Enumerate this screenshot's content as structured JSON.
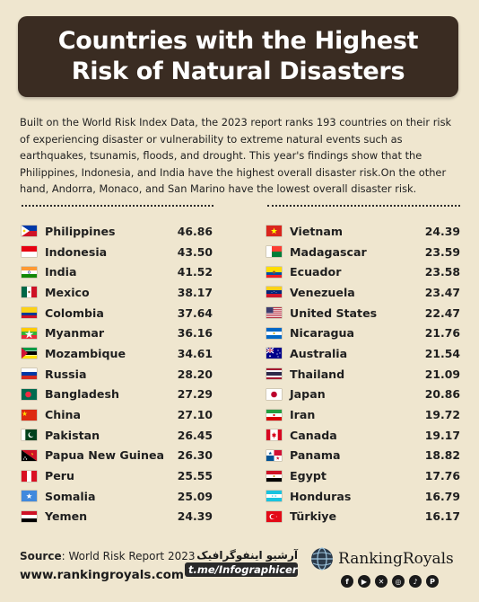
{
  "title_line1": "Countries with the Highest",
  "title_line2": "Risk of Natural Disasters",
  "description": "Built on the World Risk Index Data, the 2023 report ranks 193 countries on their risk of experiencing disaster or vulnerability to extreme natural events such as earthquakes, tsunamis, floods, and drought. This year's findings show that the Philippines, Indonesia, and India have the highest overall disaster risk.On the other hand, Andorra, Monaco, and San Marino have the lowest overall disaster risk.",
  "left_column": [
    {
      "country": "Philippines",
      "score": "46.86",
      "flag": "philippines"
    },
    {
      "country": "Indonesia",
      "score": "43.50",
      "flag": "indonesia"
    },
    {
      "country": "India",
      "score": "41.52",
      "flag": "india"
    },
    {
      "country": "Mexico",
      "score": "38.17",
      "flag": "mexico"
    },
    {
      "country": "Colombia",
      "score": "37.64",
      "flag": "colombia"
    },
    {
      "country": "Myanmar",
      "score": "36.16",
      "flag": "myanmar"
    },
    {
      "country": "Mozambique",
      "score": "34.61",
      "flag": "mozambique"
    },
    {
      "country": "Russia",
      "score": "28.20",
      "flag": "russia"
    },
    {
      "country": "Bangladesh",
      "score": "27.29",
      "flag": "bangladesh"
    },
    {
      "country": "China",
      "score": "27.10",
      "flag": "china"
    },
    {
      "country": "Pakistan",
      "score": "26.45",
      "flag": "pakistan"
    },
    {
      "country": "Papua New Guinea",
      "score": "26.30",
      "flag": "papua-new-guinea"
    },
    {
      "country": "Peru",
      "score": "25.55",
      "flag": "peru"
    },
    {
      "country": "Somalia",
      "score": "25.09",
      "flag": "somalia"
    },
    {
      "country": "Yemen",
      "score": "24.39",
      "flag": "yemen"
    }
  ],
  "right_column": [
    {
      "country": "Vietnam",
      "score": "24.39",
      "flag": "vietnam"
    },
    {
      "country": "Madagascar",
      "score": "23.59",
      "flag": "madagascar"
    },
    {
      "country": "Ecuador",
      "score": "23.58",
      "flag": "ecuador"
    },
    {
      "country": "Venezuela",
      "score": "23.47",
      "flag": "venezuela"
    },
    {
      "country": "United States",
      "score": "22.47",
      "flag": "united-states"
    },
    {
      "country": "Nicaragua",
      "score": "21.76",
      "flag": "nicaragua"
    },
    {
      "country": "Australia",
      "score": "21.54",
      "flag": "australia"
    },
    {
      "country": "Thailand",
      "score": "21.09",
      "flag": "thailand"
    },
    {
      "country": "Japan",
      "score": "20.86",
      "flag": "japan"
    },
    {
      "country": "Iran",
      "score": "19.72",
      "flag": "iran"
    },
    {
      "country": "Canada",
      "score": "19.17",
      "flag": "canada"
    },
    {
      "country": "Panama",
      "score": "18.82",
      "flag": "panama"
    },
    {
      "country": "Egypt",
      "score": "17.76",
      "flag": "egypt"
    },
    {
      "country": "Honduras",
      "score": "16.79",
      "flag": "honduras"
    },
    {
      "country": "Türkiye",
      "score": "16.17",
      "flag": "turkiye"
    }
  ],
  "footer": {
    "source_label": "Source",
    "source_text": ": World Risk Report 2023",
    "url": "www.rankingroyals.com",
    "persian_text": "آرشیو اینفوگرافیک تلگرام",
    "telegram_handle": "t.me/Infographicer",
    "brand_name": "RankingRoyals"
  },
  "colors": {
    "background": "#efe6cf",
    "title_box": "#3a2c22",
    "title_text": "#ffffff"
  },
  "social_icons": [
    "facebook-icon",
    "youtube-icon",
    "x-icon",
    "instagram-icon",
    "tiktok-icon",
    "pinterest-icon"
  ]
}
